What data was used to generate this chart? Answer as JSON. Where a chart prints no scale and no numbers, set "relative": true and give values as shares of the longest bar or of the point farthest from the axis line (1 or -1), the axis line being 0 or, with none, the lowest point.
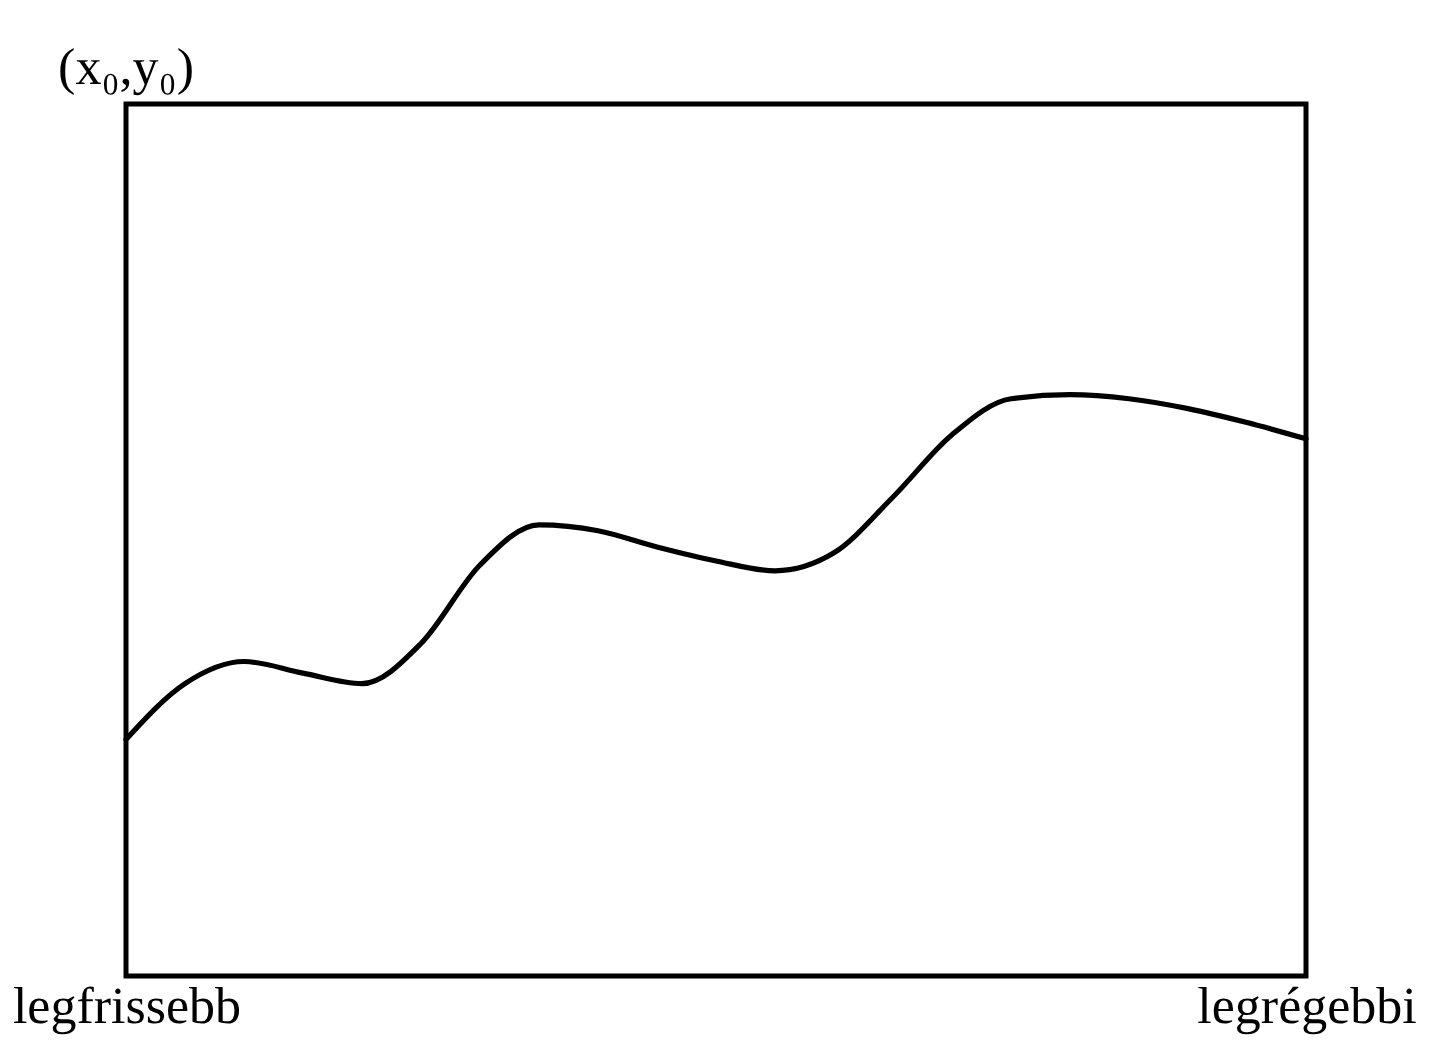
{
  "chart_data": {
    "type": "line",
    "relative": true,
    "color": "#000000",
    "categories": [
      "legfrissebb",
      null,
      null,
      null,
      null,
      null,
      null,
      null,
      null,
      null,
      null,
      null,
      null,
      null,
      null,
      null,
      null,
      null,
      null,
      null,
      "legrégebbi"
    ],
    "values": [
      0.407,
      0.503,
      0.541,
      0.521,
      0.503,
      0.572,
      0.707,
      0.776,
      0.766,
      0.738,
      0.714,
      0.697,
      0.728,
      0.824,
      0.931,
      0.993,
      1,
      0.993,
      0.976,
      0.952,
      0.924
    ],
    "annotations": [
      "(x₀,y₀)"
    ],
    "marker": "none",
    "line_style": "solid",
    "grid": false,
    "tick_labels": "x"
  }
}
